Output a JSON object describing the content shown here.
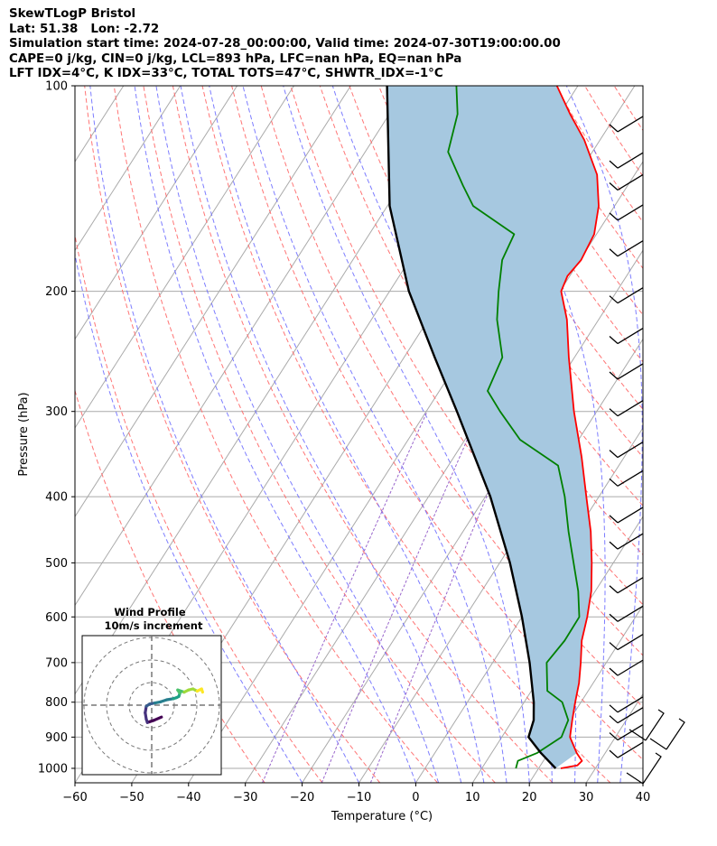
{
  "header": {
    "line1": "SkewTLogP Bristol",
    "line2": "Lat: 51.38   Lon: -2.72",
    "line3": "Simulation start time: 2024-07-28_00:00:00, Valid time: 2024-07-30T19:00:00.00",
    "line4": "CAPE=0 j/kg, CIN=0 j/kg, LCL=893 hPa, LFC=nan hPa, EQ=nan hPa",
    "line5": "LFT IDX=4$^\\circ$C, K IDX=33$^\\circ$C, TOTAL TOTS=47$^\\circ$C, SHWTR_IDX=-1$^\\circ$C"
  },
  "chart_data": {
    "type": "line",
    "subtype": "skew-t log-p",
    "xlabel": "Temperature ($^\\circ$C)",
    "ylabel": "Pressure (hPa)",
    "xlim": [
      -60,
      40
    ],
    "ylim": [
      1050,
      100
    ],
    "x_ticks": [
      "−60",
      "−50",
      "−40",
      "−30",
      "−20",
      "−10",
      "0",
      "10",
      "20",
      "30",
      "40"
    ],
    "x_tick_values": [
      -60,
      -50,
      -40,
      -30,
      -20,
      -10,
      0,
      10,
      20,
      30,
      40
    ],
    "y_ticks": [
      "100",
      "200",
      "300",
      "400",
      "500",
      "600",
      "700",
      "800",
      "900",
      "1000"
    ],
    "y_tick_values": [
      100,
      200,
      300,
      400,
      500,
      600,
      700,
      800,
      900,
      1000
    ],
    "grid": true,
    "log_y": true,
    "colors": {
      "temperature": "#ff0000",
      "dewpoint": "#008000",
      "parcel": "#000000",
      "fill": "#a6c8e0",
      "dry_adiabat": "#ff6666",
      "moist_adiabat": "#6666ff",
      "mixing_ratio": "#9966cc",
      "isotherm": "#aaaaaa"
    },
    "series": [
      {
        "type": "temperature",
        "points": [
          [
            1000,
            23.9
          ],
          [
            990,
            26.5
          ],
          [
            975,
            26.8
          ],
          [
            950,
            25
          ],
          [
            900,
            22
          ],
          [
            850,
            20.5
          ],
          [
            800,
            19
          ],
          [
            750,
            17.5
          ],
          [
            700,
            15.5
          ],
          [
            650,
            13.2
          ],
          [
            600,
            11.5
          ],
          [
            550,
            9.3
          ],
          [
            500,
            6.2
          ],
          [
            450,
            2.5
          ],
          [
            400,
            -2.2
          ],
          [
            350,
            -7.5
          ],
          [
            300,
            -14
          ],
          [
            250,
            -21
          ],
          [
            220,
            -25.6
          ],
          [
            200,
            -29.8
          ],
          [
            190,
            -30.4
          ],
          [
            180,
            -29.8
          ],
          [
            165,
            -30.4
          ],
          [
            150,
            -32.8
          ],
          [
            135,
            -36.6
          ],
          [
            120,
            -42.8
          ],
          [
            110,
            -48.2
          ],
          [
            100,
            -53.7
          ]
        ]
      },
      {
        "type": "dewpoint",
        "points": [
          [
            1000,
            16
          ],
          [
            975,
            15.5
          ],
          [
            950,
            18
          ],
          [
            900,
            20.5
          ],
          [
            850,
            19.8
          ],
          [
            800,
            16.7
          ],
          [
            770,
            12.8
          ],
          [
            700,
            9.5
          ],
          [
            650,
            10.2
          ],
          [
            600,
            10.1
          ],
          [
            550,
            7
          ],
          [
            500,
            3
          ],
          [
            450,
            -1.4
          ],
          [
            400,
            -6
          ],
          [
            360,
            -10.7
          ],
          [
            330,
            -20.3
          ],
          [
            300,
            -27
          ],
          [
            280,
            -31.5
          ],
          [
            250,
            -32.7
          ],
          [
            220,
            -37.9
          ],
          [
            200,
            -40.8
          ],
          [
            180,
            -43.7
          ],
          [
            165,
            -44.5
          ],
          [
            150,
            -54.9
          ],
          [
            140,
            -59
          ],
          [
            125,
            -65.4
          ],
          [
            110,
            -68
          ],
          [
            100,
            -71.4
          ]
        ]
      },
      {
        "type": "parcel",
        "points": [
          [
            1000,
            23
          ],
          [
            950,
            18.7
          ],
          [
            900,
            14.7
          ],
          [
            850,
            13.7
          ],
          [
            800,
            11.7
          ],
          [
            700,
            6.5
          ],
          [
            600,
            0
          ],
          [
            500,
            -8.2
          ],
          [
            400,
            -19.1
          ],
          [
            300,
            -34.6
          ],
          [
            250,
            -44.6
          ],
          [
            200,
            -56.6
          ],
          [
            150,
            -69.6
          ],
          [
            100,
            -83.6
          ]
        ]
      }
    ],
    "wind_barbs": "present on right edge, 1000-100 hPa",
    "inset": {
      "title": "Wind Profile",
      "subtitle": "10m/s increment",
      "type": "hodograph",
      "hodograph": [
        [
          0.9,
          -1.1
        ],
        [
          0.2,
          -1.4
        ],
        [
          -0.4,
          -1.6
        ],
        [
          -0.5,
          -1.3
        ],
        [
          -0.6,
          -0.7
        ],
        [
          -0.5,
          -0.1
        ],
        [
          -0.2,
          0.1
        ],
        [
          0.3,
          0.2
        ],
        [
          0.8,
          0.3
        ],
        [
          1.4,
          0.5
        ],
        [
          2.0,
          0.6
        ],
        [
          2.3,
          0.7
        ],
        [
          2.5,
          0.8
        ],
        [
          2.6,
          1.1
        ],
        [
          2.4,
          1.4
        ],
        [
          3.0,
          1.2
        ],
        [
          3.4,
          1.4
        ],
        [
          3.8,
          1.5
        ],
        [
          4.2,
          1.3
        ],
        [
          4.6,
          1.5
        ],
        [
          4.7,
          1.2
        ]
      ]
    }
  }
}
